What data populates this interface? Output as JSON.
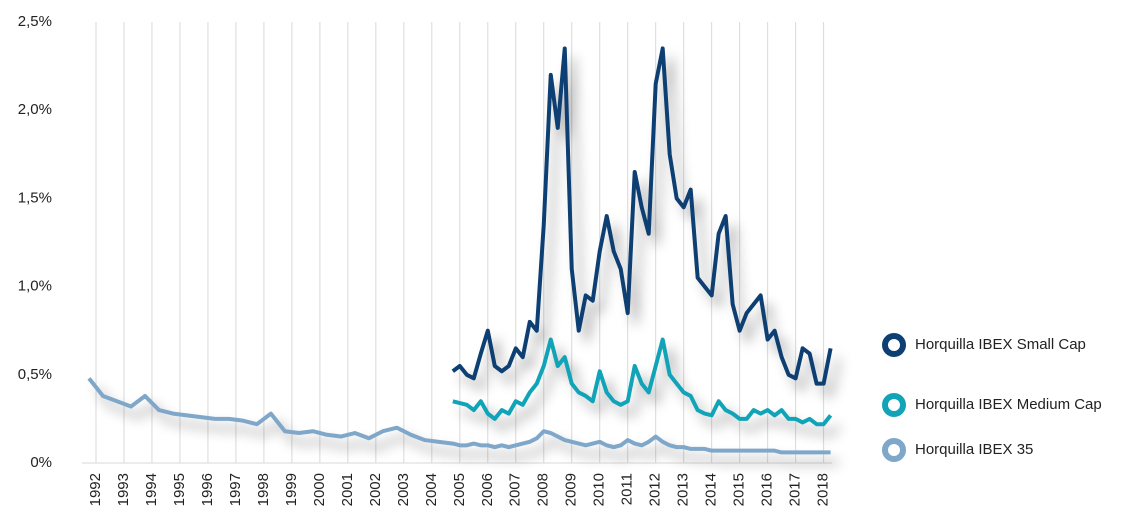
{
  "chart_data": {
    "type": "line",
    "x": [
      1991.75,
      1992.25,
      1992.75,
      1993.25,
      1993.75,
      1994.25,
      1994.75,
      1995.25,
      1995.75,
      1996.25,
      1996.75,
      1997.25,
      1997.75,
      1998.25,
      1998.75,
      1999.25,
      1999.75,
      2000.25,
      2000.75,
      2001.25,
      2001.75,
      2002.25,
      2002.75,
      2003.25,
      2003.75,
      2004.25,
      2004.75,
      2005,
      2005.25,
      2005.5,
      2005.75,
      2006,
      2006.25,
      2006.5,
      2006.75,
      2007,
      2007.25,
      2007.5,
      2007.75,
      2008,
      2008.25,
      2008.5,
      2008.75,
      2009,
      2009.25,
      2009.5,
      2009.75,
      2010,
      2010.25,
      2010.5,
      2010.75,
      2011,
      2011.25,
      2011.5,
      2011.75,
      2012,
      2012.25,
      2012.5,
      2012.75,
      2013,
      2013.25,
      2013.5,
      2013.75,
      2014,
      2014.25,
      2014.5,
      2014.75,
      2015,
      2015.25,
      2015.5,
      2015.75,
      2016,
      2016.25,
      2016.5,
      2016.75,
      2017,
      2017.25,
      2017.5,
      2017.75,
      2018,
      2018.25
    ],
    "series": [
      {
        "name": "Horquilla IBEX Small Cap",
        "color": "#0d3f73",
        "values": [
          null,
          null,
          null,
          null,
          null,
          null,
          null,
          null,
          null,
          null,
          null,
          null,
          null,
          null,
          null,
          null,
          null,
          null,
          null,
          null,
          null,
          null,
          null,
          null,
          null,
          null,
          0.52,
          0.55,
          0.5,
          0.48,
          0.62,
          0.75,
          0.55,
          0.52,
          0.55,
          0.65,
          0.6,
          0.8,
          0.75,
          1.35,
          2.2,
          1.9,
          2.35,
          1.1,
          0.75,
          0.95,
          0.92,
          1.2,
          1.4,
          1.2,
          1.1,
          0.85,
          1.65,
          1.45,
          1.3,
          2.15,
          2.35,
          1.75,
          1.5,
          1.45,
          1.55,
          1.05,
          1.0,
          0.95,
          1.3,
          1.4,
          0.9,
          0.75,
          0.85,
          0.9,
          0.95,
          0.7,
          0.75,
          0.6,
          0.5,
          0.48,
          0.65,
          0.62,
          0.45,
          0.45,
          0.65
        ]
      },
      {
        "name": "Horquilla IBEX Medium Cap",
        "color": "#11a3b8",
        "values": [
          null,
          null,
          null,
          null,
          null,
          null,
          null,
          null,
          null,
          null,
          null,
          null,
          null,
          null,
          null,
          null,
          null,
          null,
          null,
          null,
          null,
          null,
          null,
          null,
          null,
          null,
          0.35,
          0.34,
          0.33,
          0.3,
          0.35,
          0.28,
          0.25,
          0.3,
          0.28,
          0.35,
          0.33,
          0.4,
          0.45,
          0.55,
          0.7,
          0.55,
          0.6,
          0.45,
          0.4,
          0.38,
          0.35,
          0.52,
          0.4,
          0.35,
          0.33,
          0.35,
          0.55,
          0.45,
          0.4,
          0.55,
          0.7,
          0.5,
          0.45,
          0.4,
          0.38,
          0.3,
          0.28,
          0.27,
          0.35,
          0.3,
          0.28,
          0.25,
          0.25,
          0.3,
          0.28,
          0.3,
          0.27,
          0.3,
          0.25,
          0.25,
          0.23,
          0.25,
          0.22,
          0.22,
          0.27
        ]
      },
      {
        "name": "Horquilla IBEX 35",
        "color": "#7fa7c9",
        "values": [
          0.48,
          0.38,
          0.35,
          0.32,
          0.38,
          0.3,
          0.28,
          0.27,
          0.26,
          0.25,
          0.25,
          0.24,
          0.22,
          0.28,
          0.18,
          0.17,
          0.18,
          0.16,
          0.15,
          0.17,
          0.14,
          0.18,
          0.2,
          0.16,
          0.13,
          0.12,
          0.11,
          0.1,
          0.1,
          0.11,
          0.1,
          0.1,
          0.09,
          0.1,
          0.09,
          0.1,
          0.11,
          0.12,
          0.14,
          0.18,
          0.17,
          0.15,
          0.13,
          0.12,
          0.11,
          0.1,
          0.11,
          0.12,
          0.1,
          0.09,
          0.1,
          0.13,
          0.11,
          0.1,
          0.12,
          0.15,
          0.12,
          0.1,
          0.09,
          0.09,
          0.08,
          0.08,
          0.08,
          0.07,
          0.07,
          0.07,
          0.07,
          0.07,
          0.07,
          0.07,
          0.07,
          0.07,
          0.07,
          0.06,
          0.06,
          0.06,
          0.06,
          0.06,
          0.06,
          0.06,
          0.06
        ]
      }
    ],
    "xlim": [
      1991.5,
      2018.3
    ],
    "xticks": [
      1992,
      1993,
      1994,
      1995,
      1996,
      1997,
      1998,
      1999,
      2000,
      2001,
      2002,
      2003,
      2004,
      2005,
      2006,
      2007,
      2008,
      2009,
      2010,
      2011,
      2012,
      2013,
      2014,
      2015,
      2016,
      2017,
      2018
    ],
    "ylim": [
      0,
      2.5
    ],
    "yticks": [
      {
        "value": 0,
        "label": "0%"
      },
      {
        "value": 0.5,
        "label": "0,5%"
      },
      {
        "value": 1,
        "label": "1,0%"
      },
      {
        "value": 1.5,
        "label": "1,5%"
      },
      {
        "value": 2,
        "label": "2,0%"
      },
      {
        "value": 2.5,
        "label": "2,5%"
      }
    ],
    "grid": true
  }
}
